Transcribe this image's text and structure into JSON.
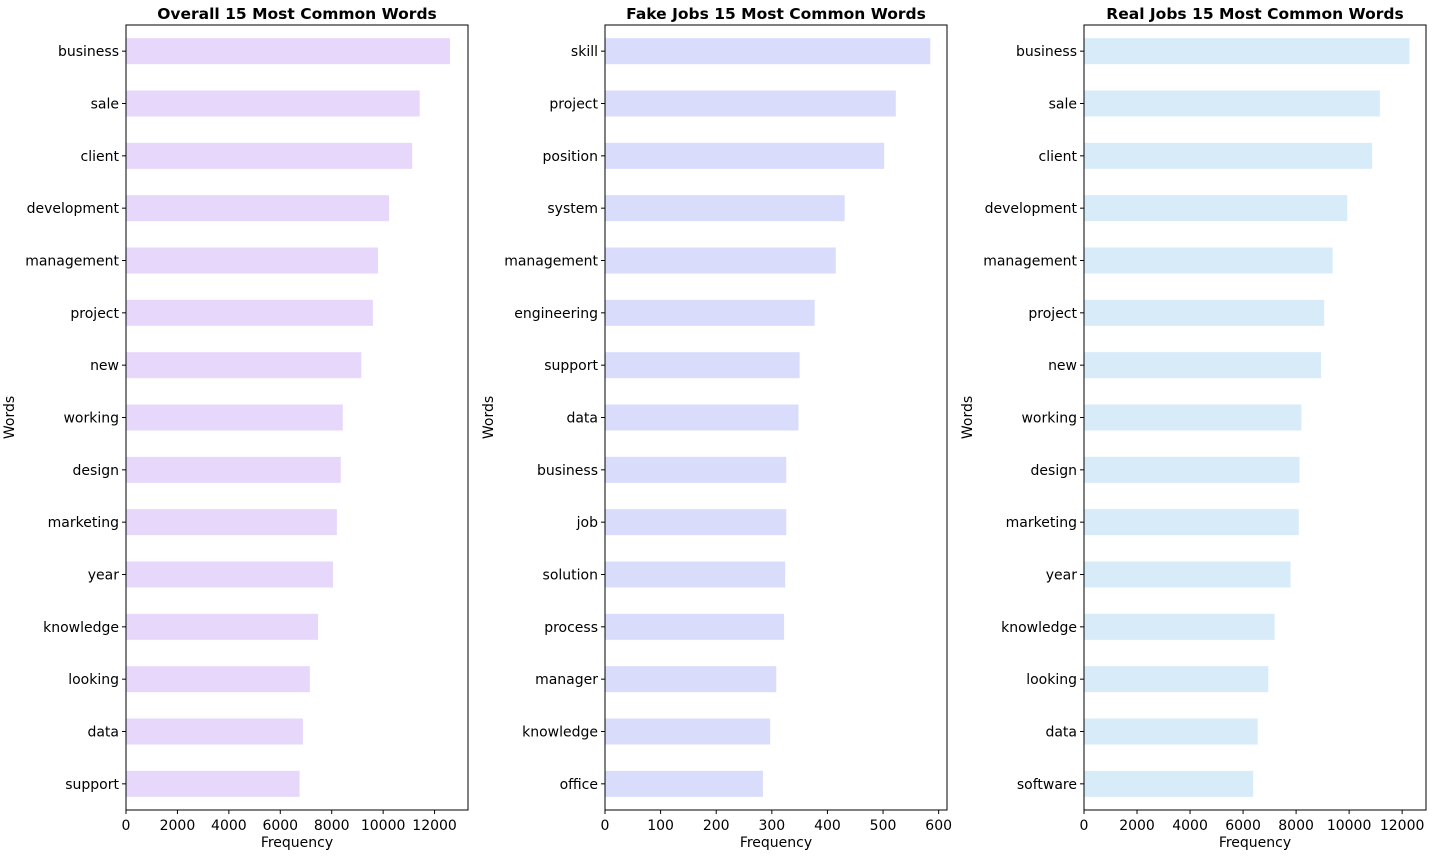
{
  "chart_data": [
    {
      "type": "bar",
      "orientation": "horizontal",
      "title": "Overall 15 Most Common Words",
      "xlabel": "Frequency",
      "ylabel": "Words",
      "color": "#e6d7fb",
      "xlim": [
        0,
        13300
      ],
      "xticks": [
        0,
        2000,
        4000,
        6000,
        8000,
        10000,
        12000
      ],
      "grid": false,
      "categories": [
        "business",
        "sale",
        "client",
        "development",
        "management",
        "project",
        "new",
        "working",
        "design",
        "marketing",
        "year",
        "knowledge",
        "looking",
        "data",
        "support"
      ],
      "values": [
        12600,
        11420,
        11130,
        10230,
        9800,
        9600,
        9150,
        8430,
        8350,
        8200,
        8050,
        7470,
        7150,
        6880,
        6750
      ]
    },
    {
      "type": "bar",
      "orientation": "horizontal",
      "title": "Fake Jobs 15 Most Common Words",
      "xlabel": "Frequency",
      "ylabel": "Words",
      "color": "#d9dcfb",
      "xlim": [
        0,
        615
      ],
      "xticks": [
        0,
        100,
        200,
        300,
        400,
        500,
        600
      ],
      "grid": false,
      "categories": [
        "skill",
        "project",
        "position",
        "system",
        "management",
        "engineering",
        "support",
        "data",
        "business",
        "job",
        "solution",
        "process",
        "manager",
        "knowledge",
        "office"
      ],
      "values": [
        585,
        523,
        502,
        431,
        415,
        377,
        350,
        348,
        326,
        326,
        324,
        322,
        308,
        297,
        284
      ]
    },
    {
      "type": "bar",
      "orientation": "horizontal",
      "title": "Real Jobs 15 Most Common Words",
      "xlabel": "Frequency",
      "ylabel": "Words",
      "color": "#d8ebf9",
      "xlim": [
        0,
        12900
      ],
      "xticks": [
        0,
        2000,
        4000,
        6000,
        8000,
        10000,
        12000
      ],
      "grid": false,
      "categories": [
        "business",
        "sale",
        "client",
        "development",
        "management",
        "project",
        "new",
        "working",
        "design",
        "marketing",
        "year",
        "knowledge",
        "looking",
        "data",
        "software"
      ],
      "values": [
        12280,
        11160,
        10870,
        9930,
        9380,
        9060,
        8940,
        8200,
        8130,
        8100,
        7790,
        7190,
        6950,
        6550,
        6380
      ]
    }
  ]
}
